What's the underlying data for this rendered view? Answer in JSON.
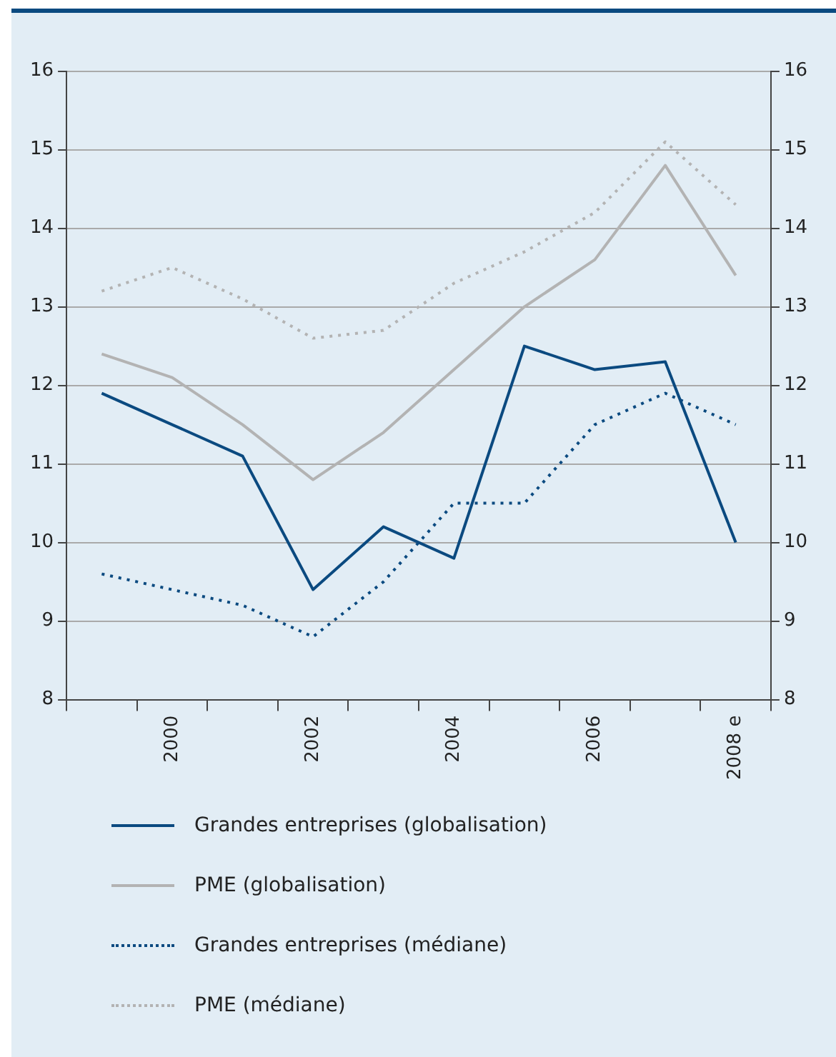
{
  "chart_data": {
    "type": "line",
    "categories": [
      null,
      "2000",
      null,
      "2002",
      null,
      "2004",
      null,
      "2006",
      null,
      "2008 e"
    ],
    "series": [
      {
        "name": "Grandes entreprises (globalisation)",
        "color": "#0b4a80",
        "line_style": "solid",
        "values": [
          11.9,
          11.5,
          11.1,
          9.4,
          10.2,
          9.8,
          12.5,
          12.2,
          12.3,
          10.0
        ]
      },
      {
        "name": "PME (globalisation)",
        "color": "#b3b3b3",
        "line_style": "solid",
        "values": [
          12.4,
          12.1,
          11.5,
          10.8,
          11.4,
          12.2,
          13.0,
          13.6,
          14.8,
          13.4
        ]
      },
      {
        "name": "Grandes entreprises (médiane)",
        "color": "#0b4a80",
        "line_style": "dotted",
        "values": [
          9.6,
          9.4,
          9.2,
          8.8,
          9.5,
          10.5,
          10.5,
          11.5,
          11.9,
          11.5
        ]
      },
      {
        "name": "PME (médiane)",
        "color": "#b3b3b3",
        "line_style": "dotted",
        "values": [
          13.2,
          13.5,
          13.1,
          12.6,
          12.7,
          13.3,
          13.7,
          14.2,
          15.1,
          14.3
        ]
      }
    ],
    "ylim": [
      8,
      16
    ],
    "yticks": [
      8,
      9,
      10,
      11,
      12,
      13,
      14,
      15,
      16
    ],
    "y2lim": [
      8,
      16
    ],
    "y2ticks": [
      8,
      9,
      10,
      11,
      12,
      13,
      14,
      15,
      16
    ],
    "grid": "y",
    "legend": "bottom",
    "marker": "none"
  }
}
